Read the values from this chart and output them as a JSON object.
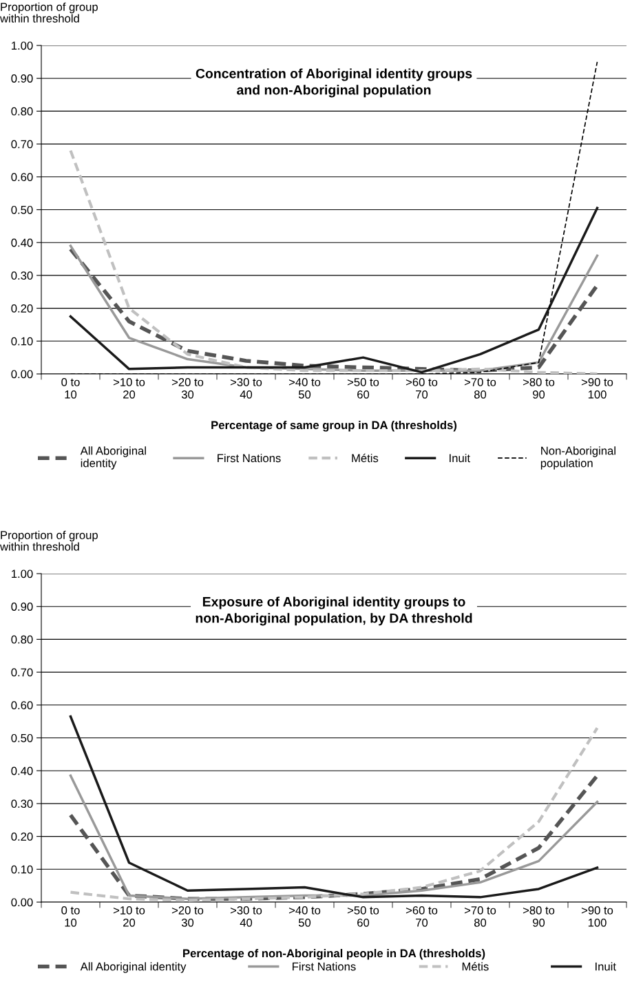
{
  "chart_data": [
    {
      "type": "line",
      "title": "Concentration of Aboriginal identity groups\nand non-Aboriginal population",
      "ylabel": "Proportion of group\nwithin threshold",
      "xlabel": "Percentage of same group in DA (thresholds)",
      "categories": [
        "0 to\n10",
        ">10 to\n20",
        ">20 to\n30",
        ">30 to\n40",
        ">40 to\n50",
        ">50 to\n60",
        ">60 to\n70",
        ">70 to\n80",
        ">80 to\n90",
        ">90 to\n100"
      ],
      "ylim": [
        0,
        1
      ],
      "yticks": [
        {
          "value": 0,
          "label": "0.00"
        },
        {
          "value": 0.1,
          "label": "0.10"
        },
        {
          "value": 0.2,
          "label": "0.20"
        },
        {
          "value": 0.3,
          "label": "0.30"
        },
        {
          "value": 0.4,
          "label": "0.40"
        },
        {
          "value": 0.5,
          "label": "0.50"
        },
        {
          "value": 0.6,
          "label": "0.60"
        },
        {
          "value": 0.7,
          "label": "0.70"
        },
        {
          "value": 0.8,
          "label": "0.80"
        },
        {
          "value": 0.9,
          "label": "0.90"
        },
        {
          "value": 1,
          "label": "1.00"
        }
      ],
      "grid": "y",
      "legend": "bottom",
      "marker": "none",
      "series": [
        {
          "name": "All Aboriginal\nidentity",
          "color": "#555555",
          "line_style": "dashed",
          "values": [
            0.38,
            0.16,
            0.07,
            0.04,
            0.025,
            0.02,
            0.015,
            0.01,
            0.02,
            0.27
          ]
        },
        {
          "name": "First Nations",
          "color": "#999999",
          "line_style": "solid",
          "values": [
            0.39,
            0.11,
            0.045,
            0.02,
            0.015,
            0.01,
            0.01,
            0.01,
            0.035,
            0.36
          ]
        },
        {
          "name": "Métis",
          "color": "#c0c0c0",
          "line_style": "dashed",
          "values": [
            0.68,
            0.2,
            0.06,
            0.02,
            0.01,
            0.01,
            0.01,
            0.015,
            0.005,
            0.0
          ]
        },
        {
          "name": "Inuit",
          "color": "#1a1a1a",
          "line_style": "solid",
          "values": [
            0.175,
            0.015,
            0.02,
            0.02,
            0.02,
            0.05,
            0.005,
            0.06,
            0.135,
            0.505
          ]
        },
        {
          "name": "Non-Aboriginal\npopulation",
          "color": "#000000",
          "line_style": "dashed",
          "values": [
            0,
            0,
            0,
            0,
            0,
            0,
            0,
            0.005,
            0.035,
            0.95
          ]
        }
      ]
    },
    {
      "type": "line",
      "title": "Exposure of Aboriginal identity groups to\nnon-Aboriginal population, by DA threshold",
      "ylabel": "Proportion of group\nwithin threshold",
      "xlabel": "Percentage of non-Aboriginal people in DA (thresholds)",
      "categories": [
        "0 to\n10",
        ">10 to\n20",
        ">20 to\n30",
        ">30 to\n40",
        ">40 to\n50",
        ">50 to\n60",
        ">60 to\n70",
        ">70 to\n80",
        ">80 to\n90",
        ">90 to\n100"
      ],
      "ylim": [
        0,
        1
      ],
      "yticks": [
        {
          "value": 0,
          "label": "0.00"
        },
        {
          "value": 0.1,
          "label": "0.10"
        },
        {
          "value": 0.2,
          "label": "0.20"
        },
        {
          "value": 0.3,
          "label": "0.30"
        },
        {
          "value": 0.4,
          "label": "0.40"
        },
        {
          "value": 0.5,
          "label": "0.50"
        },
        {
          "value": 0.6,
          "label": "0.60"
        },
        {
          "value": 0.7,
          "label": "0.70"
        },
        {
          "value": 0.8,
          "label": "0.80"
        },
        {
          "value": 0.9,
          "label": "0.90"
        },
        {
          "value": 1,
          "label": "1.00"
        }
      ],
      "grid": "y",
      "legend": "bottom",
      "marker": "none",
      "series": [
        {
          "name": "All Aboriginal identity",
          "color": "#555555",
          "line_style": "dashed",
          "values": [
            0.265,
            0.02,
            0.01,
            0.01,
            0.015,
            0.025,
            0.04,
            0.07,
            0.165,
            0.385
          ]
        },
        {
          "name": "First Nations",
          "color": "#999999",
          "line_style": "solid",
          "values": [
            0.385,
            0.02,
            0.01,
            0.015,
            0.02,
            0.02,
            0.035,
            0.06,
            0.125,
            0.305
          ]
        },
        {
          "name": "Métis",
          "color": "#c0c0c0",
          "line_style": "dashed",
          "values": [
            0.03,
            0.01,
            0.005,
            0.01,
            0.015,
            0.025,
            0.045,
            0.095,
            0.245,
            0.53
          ]
        },
        {
          "name": "Inuit",
          "color": "#1a1a1a",
          "line_style": "solid",
          "values": [
            0.565,
            0.12,
            0.035,
            0.04,
            0.045,
            0.015,
            0.02,
            0.015,
            0.04,
            0.105
          ]
        }
      ]
    }
  ]
}
